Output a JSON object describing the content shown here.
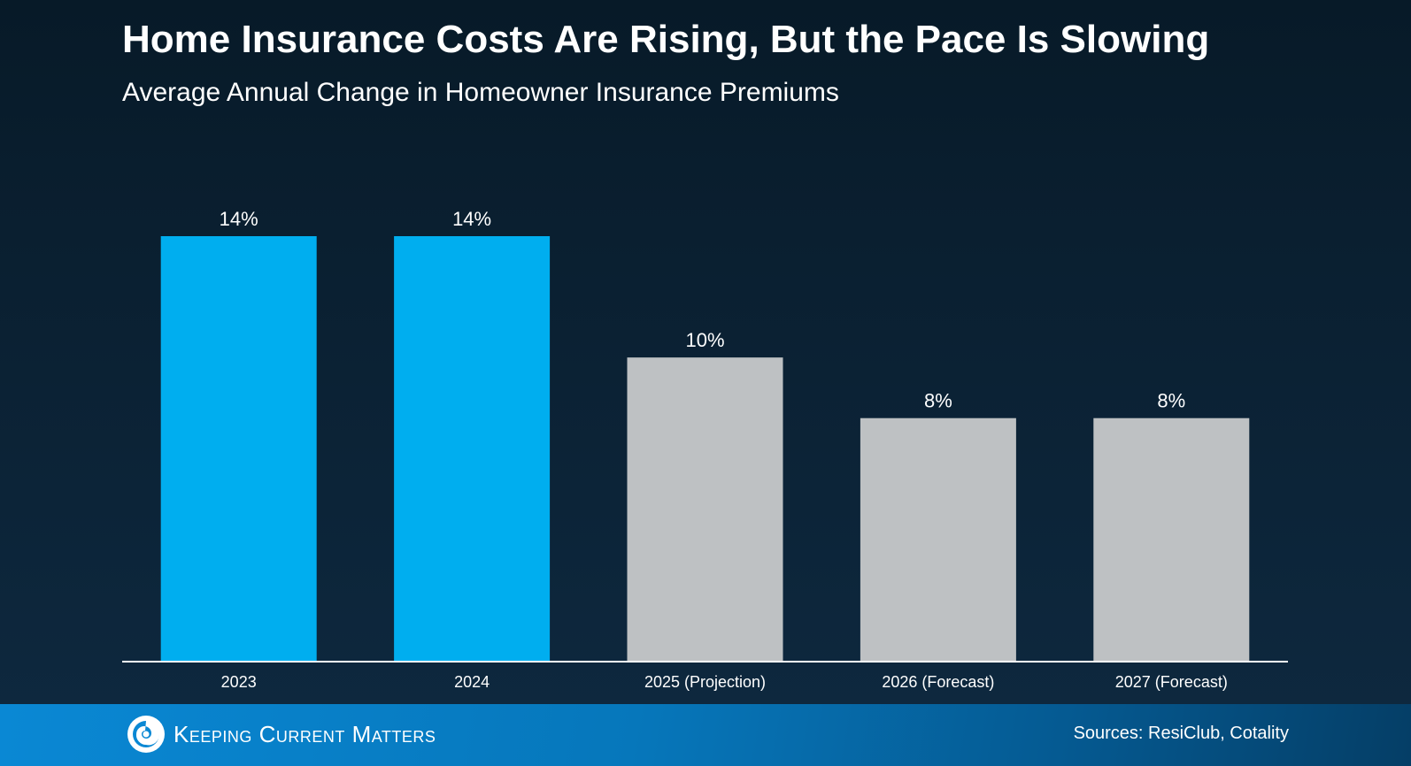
{
  "header": {
    "title": "Home Insurance Costs Are Rising, But the Pace Is Slowing",
    "subtitle": "Average Annual Change in Homeowner Insurance Premiums"
  },
  "footer": {
    "brand": "Keeping Current Matters",
    "sources": "Sources: ResiClub, Cotality",
    "background_color": "#0a88d4"
  },
  "chart_data": {
    "type": "bar",
    "title": "Home Insurance Costs Are Rising, But the Pace Is Slowing",
    "subtitle": "Average Annual Change in Homeowner Insurance Premiums",
    "xlabel": "",
    "ylabel": "",
    "categories": [
      "2023",
      "2024",
      "2025 (Projection)",
      "2026 (Forecast)",
      "2027 (Forecast)"
    ],
    "values": [
      14,
      14,
      10,
      8,
      8
    ],
    "data_labels": [
      "14%",
      "14%",
      "10%",
      "8%",
      "8%"
    ],
    "unit": "%",
    "ylim": [
      0,
      14
    ],
    "grid": false,
    "legend": "none",
    "bar_colors": [
      "#00aeef",
      "#00aeef",
      "#bec1c3",
      "#bec1c3",
      "#bec1c3"
    ],
    "category_type": [
      "actual",
      "actual",
      "projection",
      "forecast",
      "forecast"
    ]
  }
}
